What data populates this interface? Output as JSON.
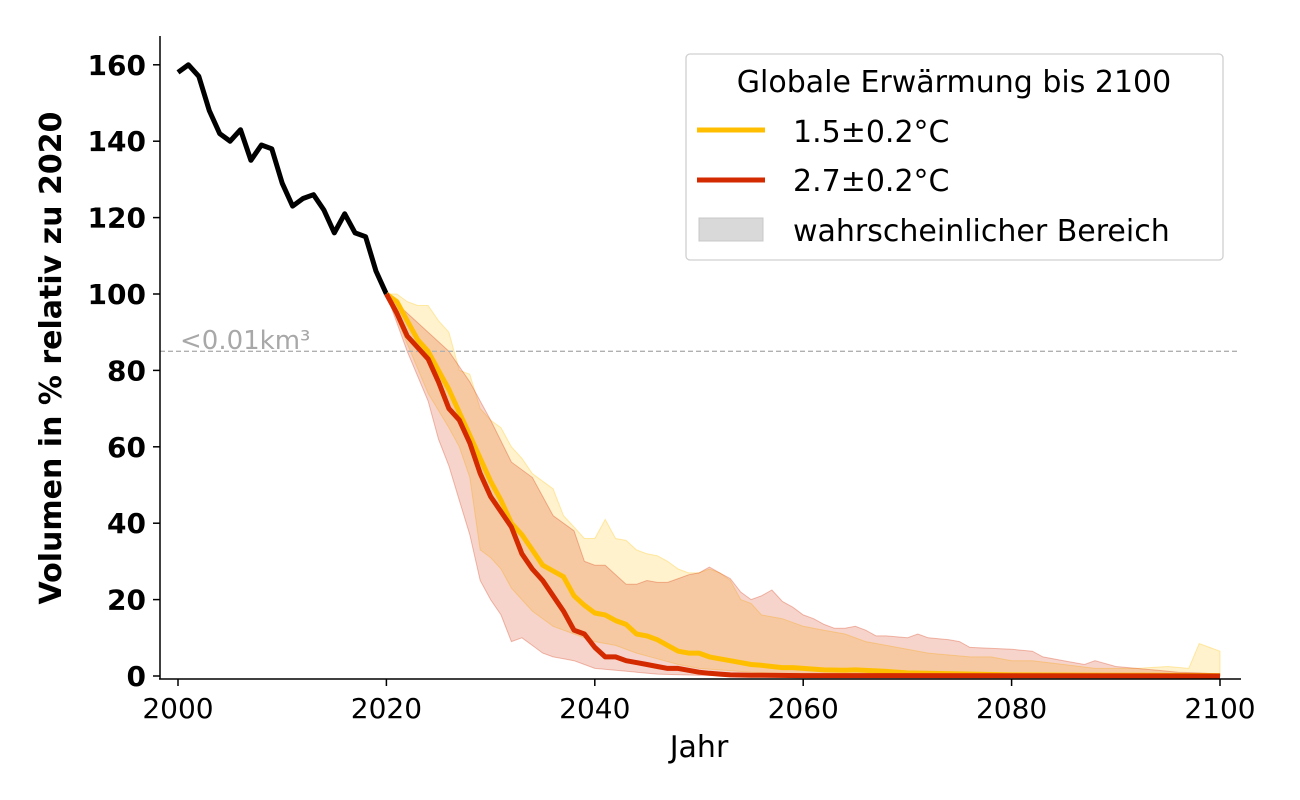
{
  "chart_data": {
    "type": "line",
    "xlabel": "Jahr",
    "ylabel": "Volumen in % relativ zu 2020",
    "xlim": [
      1998,
      2102
    ],
    "ylim": [
      -1,
      168
    ],
    "xticks": [
      2000,
      2020,
      2040,
      2060,
      2080,
      2100
    ],
    "yticks": [
      0,
      20,
      40,
      60,
      80,
      100,
      120,
      140,
      160
    ],
    "grid": false,
    "legend": {
      "title": "Globale Erwärmung bis 2100",
      "placement": "top-right",
      "entries": [
        "1.5±0.2°C",
        "2.7±0.2°C",
        "wahrscheinlicher Bereich"
      ]
    },
    "reference_line": {
      "y": 85,
      "label": "<0.01km³",
      "color": "#b0b0b0"
    },
    "colors": {
      "historical": "#000000",
      "s15": "#FFBF00",
      "s27": "#D42A00",
      "range_legend": "#D9D9D9"
    },
    "historical": {
      "x": [
        2000,
        2001,
        2002,
        2003,
        2004,
        2005,
        2006,
        2007,
        2008,
        2009,
        2010,
        2011,
        2012,
        2013,
        2014,
        2015,
        2016,
        2017,
        2018,
        2019,
        2020
      ],
      "y": [
        158,
        160,
        157,
        148,
        142,
        140,
        143,
        135,
        139,
        138,
        129,
        123,
        125,
        126,
        122,
        116,
        121,
        116,
        115,
        106,
        100
      ]
    },
    "series": [
      {
        "name": "1.5±0.2°C",
        "median": [
          [
            2020,
            100
          ],
          [
            2021,
            98
          ],
          [
            2022,
            93
          ],
          [
            2023,
            88
          ],
          [
            2024,
            85
          ],
          [
            2025,
            80
          ],
          [
            2026,
            75
          ],
          [
            2027,
            69
          ],
          [
            2028,
            63
          ],
          [
            2029,
            57
          ],
          [
            2030,
            51
          ],
          [
            2031,
            46
          ],
          [
            2032,
            40
          ],
          [
            2033,
            37
          ],
          [
            2034,
            33
          ],
          [
            2035,
            29
          ],
          [
            2036,
            27.5
          ],
          [
            2037,
            26
          ],
          [
            2038,
            21
          ],
          [
            2039,
            18.5
          ],
          [
            2040,
            16.5
          ],
          [
            2041,
            16
          ],
          [
            2042,
            14.5
          ],
          [
            2043,
            13.5
          ],
          [
            2044,
            11
          ],
          [
            2045,
            10.5
          ],
          [
            2046,
            9.5
          ],
          [
            2047,
            8
          ],
          [
            2048,
            6.5
          ],
          [
            2049,
            6
          ],
          [
            2050,
            6
          ],
          [
            2051,
            5
          ],
          [
            2052,
            4.5
          ],
          [
            2053,
            4
          ],
          [
            2054,
            3.5
          ],
          [
            2055,
            3
          ],
          [
            2056,
            2.8
          ],
          [
            2057,
            2.5
          ],
          [
            2058,
            2.2
          ],
          [
            2059,
            2.2
          ],
          [
            2060,
            2
          ],
          [
            2062,
            1.6
          ],
          [
            2064,
            1.5
          ],
          [
            2065,
            1.6
          ],
          [
            2068,
            1.2
          ],
          [
            2070,
            0.8
          ],
          [
            2080,
            0.3
          ],
          [
            2090,
            0.2
          ],
          [
            2100,
            0.1
          ]
        ],
        "upper": [
          [
            2020,
            100
          ],
          [
            2021,
            100
          ],
          [
            2022,
            98
          ],
          [
            2023,
            97
          ],
          [
            2024,
            97
          ],
          [
            2025,
            93
          ],
          [
            2026,
            90
          ],
          [
            2027,
            80
          ],
          [
            2028,
            79
          ],
          [
            2029,
            70
          ],
          [
            2030,
            67
          ],
          [
            2031,
            65
          ],
          [
            2032,
            60
          ],
          [
            2033,
            57
          ],
          [
            2034,
            53
          ],
          [
            2035,
            51
          ],
          [
            2036,
            49
          ],
          [
            2037,
            42
          ],
          [
            2038,
            39
          ],
          [
            2039,
            36
          ],
          [
            2040,
            36
          ],
          [
            2041,
            41
          ],
          [
            2042,
            36
          ],
          [
            2043,
            35.5
          ],
          [
            2044,
            33
          ],
          [
            2045,
            32
          ],
          [
            2046,
            31.5
          ],
          [
            2047,
            30
          ],
          [
            2048,
            28
          ],
          [
            2049,
            27
          ],
          [
            2050,
            27
          ],
          [
            2051,
            28
          ],
          [
            2052,
            27
          ],
          [
            2053,
            25
          ],
          [
            2054,
            20
          ],
          [
            2055,
            19
          ],
          [
            2056,
            16
          ],
          [
            2058,
            15
          ],
          [
            2060,
            13
          ],
          [
            2062,
            12
          ],
          [
            2064,
            11
          ],
          [
            2066,
            9
          ],
          [
            2068,
            8
          ],
          [
            2070,
            7
          ],
          [
            2072,
            6
          ],
          [
            2074,
            5.5
          ],
          [
            2076,
            5
          ],
          [
            2078,
            5
          ],
          [
            2080,
            4
          ],
          [
            2082,
            4
          ],
          [
            2085,
            3
          ],
          [
            2088,
            2
          ],
          [
            2092,
            2
          ],
          [
            2095,
            2.5
          ],
          [
            2097,
            2
          ],
          [
            2098,
            8.5
          ],
          [
            2099,
            7.5
          ],
          [
            2100,
            6.5
          ]
        ],
        "lower": [
          [
            2020,
            100
          ],
          [
            2022,
            87
          ],
          [
            2024,
            74
          ],
          [
            2026,
            65
          ],
          [
            2027,
            60
          ],
          [
            2028,
            52
          ],
          [
            2029,
            33
          ],
          [
            2030,
            31
          ],
          [
            2031,
            28
          ],
          [
            2032,
            23
          ],
          [
            2034,
            17
          ],
          [
            2036,
            13
          ],
          [
            2038,
            11
          ],
          [
            2040,
            9
          ],
          [
            2042,
            8
          ],
          [
            2044,
            6
          ],
          [
            2046,
            4.5
          ],
          [
            2048,
            3
          ],
          [
            2050,
            2
          ],
          [
            2055,
            1
          ],
          [
            2060,
            0.5
          ],
          [
            2070,
            0.1
          ],
          [
            2100,
            0
          ]
        ]
      },
      {
        "name": "2.7±0.2°C",
        "median": [
          [
            2020,
            100
          ],
          [
            2021,
            95
          ],
          [
            2022,
            89
          ],
          [
            2023,
            86
          ],
          [
            2024,
            83
          ],
          [
            2025,
            77
          ],
          [
            2026,
            70
          ],
          [
            2027,
            67
          ],
          [
            2028,
            61
          ],
          [
            2029,
            53
          ],
          [
            2030,
            47
          ],
          [
            2031,
            43
          ],
          [
            2032,
            39
          ],
          [
            2033,
            32
          ],
          [
            2034,
            28
          ],
          [
            2035,
            25
          ],
          [
            2036,
            21
          ],
          [
            2037,
            17
          ],
          [
            2038,
            12
          ],
          [
            2039,
            11
          ],
          [
            2040,
            7.5
          ],
          [
            2041,
            5
          ],
          [
            2042,
            5
          ],
          [
            2043,
            4
          ],
          [
            2044,
            3.5
          ],
          [
            2045,
            3
          ],
          [
            2046,
            2.5
          ],
          [
            2047,
            2
          ],
          [
            2048,
            2
          ],
          [
            2049,
            1.5
          ],
          [
            2050,
            1
          ],
          [
            2051,
            0.7
          ],
          [
            2052,
            0.5
          ],
          [
            2053,
            0.3
          ],
          [
            2055,
            0.2
          ],
          [
            2060,
            0.1
          ],
          [
            2100,
            0
          ]
        ],
        "upper": [
          [
            2020,
            100
          ],
          [
            2022,
            95
          ],
          [
            2024,
            90
          ],
          [
            2026,
            85
          ],
          [
            2028,
            77
          ],
          [
            2030,
            67
          ],
          [
            2032,
            56
          ],
          [
            2034,
            52
          ],
          [
            2036,
            42
          ],
          [
            2038,
            38
          ],
          [
            2039,
            30
          ],
          [
            2040,
            29
          ],
          [
            2041,
            29
          ],
          [
            2042,
            26.5
          ],
          [
            2043,
            24
          ],
          [
            2044,
            24
          ],
          [
            2045,
            25
          ],
          [
            2046,
            24.5
          ],
          [
            2047,
            24.5
          ],
          [
            2048,
            25.5
          ],
          [
            2049,
            26.5
          ],
          [
            2050,
            27
          ],
          [
            2051,
            28.5
          ],
          [
            2052,
            27
          ],
          [
            2053,
            25.5
          ],
          [
            2054,
            22
          ],
          [
            2055,
            20
          ],
          [
            2056,
            21
          ],
          [
            2057,
            22.5
          ],
          [
            2058,
            19.5
          ],
          [
            2059,
            18
          ],
          [
            2060,
            16
          ],
          [
            2061,
            15
          ],
          [
            2062,
            13.5
          ],
          [
            2063,
            12.5
          ],
          [
            2064,
            12.5
          ],
          [
            2065,
            13
          ],
          [
            2066,
            12
          ],
          [
            2067,
            10.5
          ],
          [
            2068,
            10.5
          ],
          [
            2070,
            10
          ],
          [
            2071,
            11
          ],
          [
            2072,
            10
          ],
          [
            2074,
            9.5
          ],
          [
            2075,
            9
          ],
          [
            2076,
            7.5
          ],
          [
            2080,
            7
          ],
          [
            2082,
            6.5
          ],
          [
            2083,
            5
          ],
          [
            2085,
            4
          ],
          [
            2087,
            3
          ],
          [
            2088,
            4
          ],
          [
            2090,
            2.5
          ],
          [
            2092,
            2
          ],
          [
            2094,
            1.5
          ],
          [
            2096,
            1
          ],
          [
            2098,
            0.8
          ],
          [
            2100,
            0.5
          ]
        ],
        "lower": [
          [
            2020,
            100
          ],
          [
            2022,
            85
          ],
          [
            2024,
            72
          ],
          [
            2025,
            62
          ],
          [
            2026,
            55
          ],
          [
            2027,
            46
          ],
          [
            2028,
            37
          ],
          [
            2029,
            25
          ],
          [
            2030,
            20
          ],
          [
            2031,
            16
          ],
          [
            2032,
            9
          ],
          [
            2033,
            10
          ],
          [
            2034,
            8
          ],
          [
            2035,
            6
          ],
          [
            2036,
            5
          ],
          [
            2037,
            4.5
          ],
          [
            2038,
            4
          ],
          [
            2039,
            3
          ],
          [
            2040,
            2
          ],
          [
            2042,
            1.5
          ],
          [
            2044,
            1
          ],
          [
            2046,
            0.5
          ],
          [
            2050,
            0.2
          ],
          [
            2055,
            0
          ],
          [
            2100,
            0
          ]
        ]
      }
    ]
  }
}
